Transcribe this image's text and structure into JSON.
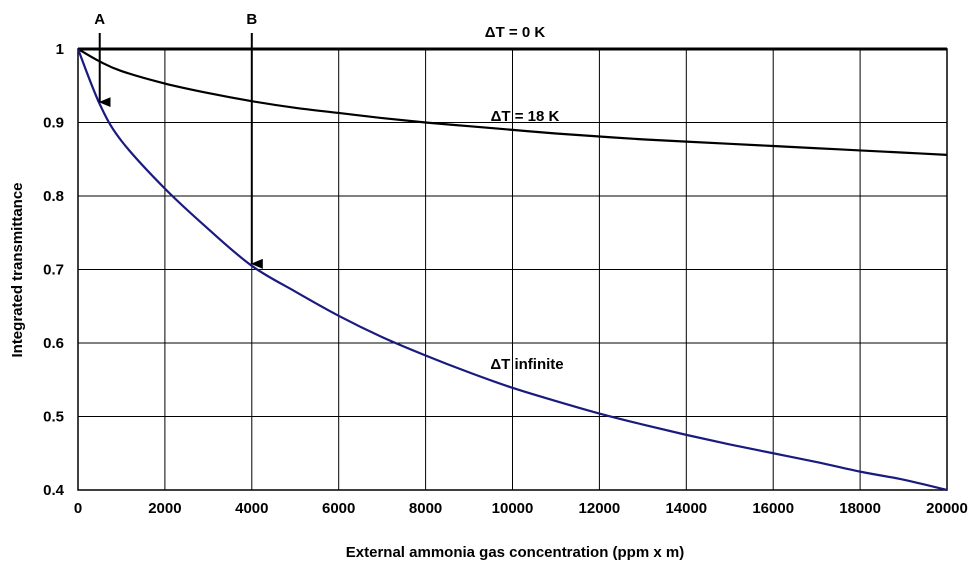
{
  "chart_data": {
    "type": "line",
    "title": "",
    "xlabel": "External ammonia gas concentration (ppm x m)",
    "ylabel": "Integrated transmittance",
    "xlim": [
      0,
      20000
    ],
    "ylim": [
      0.4,
      1.0
    ],
    "grid": true,
    "x_ticks": [
      "0",
      "2000",
      "4000",
      "6000",
      "8000",
      "10000",
      "12000",
      "14000",
      "16000",
      "18000",
      "20000"
    ],
    "y_ticks": [
      "0.4",
      "0.5",
      "0.6",
      "0.7",
      "0.8",
      "0.9",
      "1"
    ],
    "x": [
      0,
      500,
      1000,
      2000,
      3000,
      4000,
      5000,
      6000,
      7000,
      8000,
      9000,
      10000,
      11000,
      12000,
      13000,
      14000,
      15000,
      16000,
      17000,
      18000,
      19000,
      20000
    ],
    "series": [
      {
        "name": "ΔT = 0 K",
        "color": "#000000",
        "values": [
          1.0,
          1.0,
          1.0,
          1.0,
          1.0,
          1.0,
          1.0,
          1.0,
          1.0,
          1.0,
          1.0,
          1.0,
          1.0,
          1.0,
          1.0,
          1.0,
          1.0,
          1.0,
          1.0,
          1.0,
          1.0,
          1.0
        ]
      },
      {
        "name": "ΔT = 18 K",
        "color": "#000000",
        "values": [
          1.0,
          0.983,
          0.97,
          0.953,
          0.94,
          0.929,
          0.92,
          0.913,
          0.906,
          0.9,
          0.895,
          0.89,
          0.885,
          0.881,
          0.877,
          0.874,
          0.871,
          0.868,
          0.865,
          0.862,
          0.859,
          0.856
        ]
      },
      {
        "name": "ΔT infinite",
        "color": "#1a1a80",
        "values": [
          1.0,
          0.925,
          0.875,
          0.81,
          0.755,
          0.705,
          0.67,
          0.637,
          0.608,
          0.583,
          0.56,
          0.539,
          0.521,
          0.504,
          0.489,
          0.475,
          0.462,
          0.45,
          0.438,
          0.425,
          0.414,
          0.4
        ]
      }
    ],
    "annotations": [
      {
        "text": "A",
        "x": 500,
        "arrow_from": 1.0,
        "arrow_to": 0.925
      },
      {
        "text": "B",
        "x": 4000,
        "arrow_from": 1.0,
        "arrow_to": 0.705
      }
    ]
  }
}
